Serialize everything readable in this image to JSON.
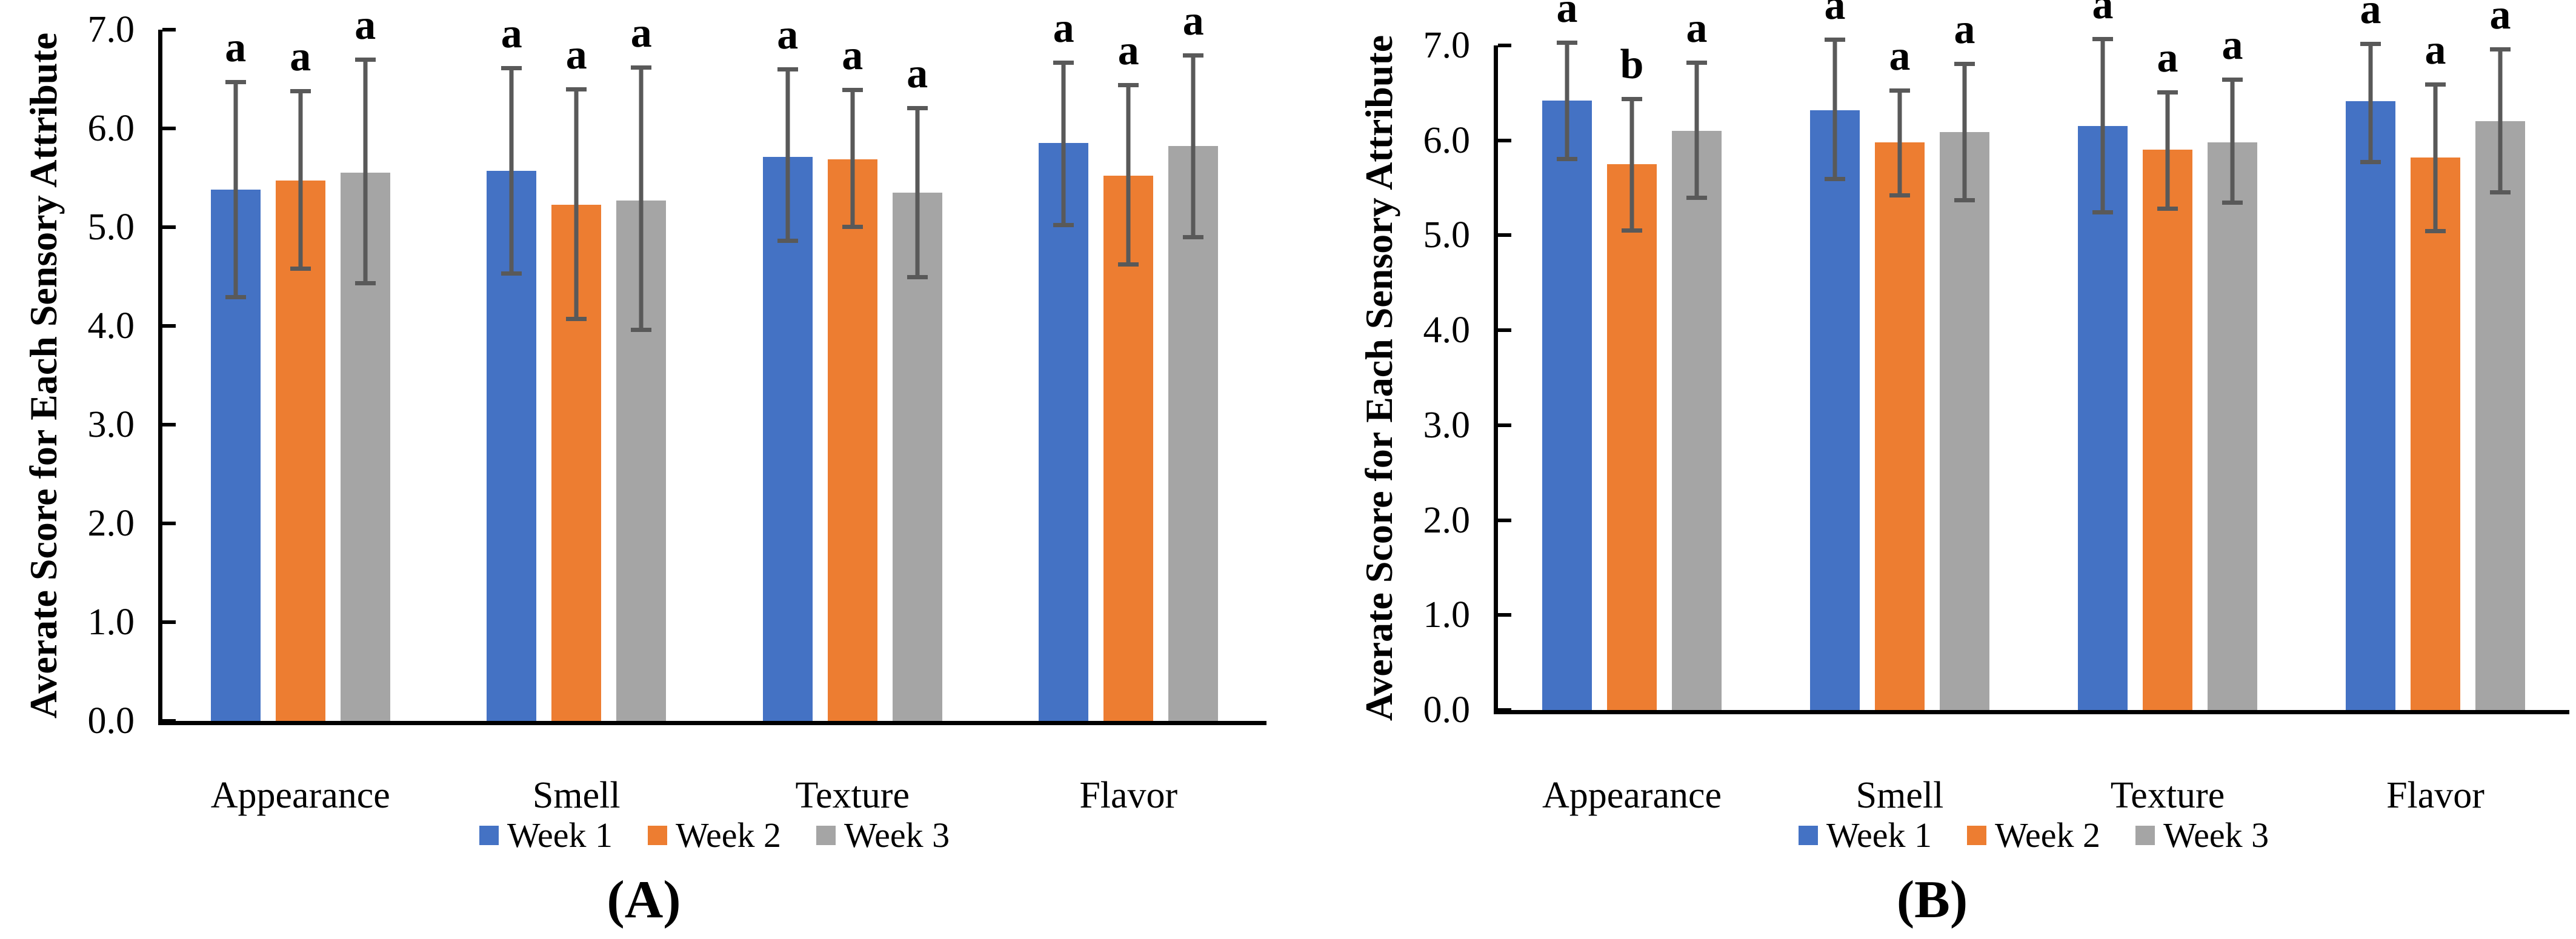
{
  "figure": {
    "y_axis_title": "Averate Score for Each Sensory Attribute",
    "y_tick_labels": [
      "0.0",
      "1.0",
      "2.0",
      "3.0",
      "4.0",
      "5.0",
      "6.0",
      "7.0"
    ],
    "colors": {
      "week1_blue": "#4472C4",
      "week2_orange": "#ED7D31",
      "week3_gray": "#A5A5A5",
      "error_bar_gray": "#595959",
      "axis_black": "#000000"
    },
    "legend": [
      {
        "label": "Week 1",
        "color": "#4472C4"
      },
      {
        "label": "Week 2",
        "color": "#ED7D31"
      },
      {
        "label": "Week 3",
        "color": "#A5A5A5"
      }
    ]
  },
  "chart_data": [
    {
      "type": "bar",
      "panel_caption": "(A)",
      "ylabel": "Averate Score for Each Sensory Attribute",
      "xlabel": "",
      "ylim": [
        0.0,
        7.0
      ],
      "ytick_step": 1.0,
      "grid": false,
      "legend_position": "bottom",
      "categories": [
        "Appearance",
        "Smell",
        "Texture",
        "Flavor"
      ],
      "series": [
        {
          "name": "Week 1",
          "color": "#4472C4",
          "values": [
            5.38,
            5.57,
            5.71,
            5.85
          ],
          "err_low": [
            4.27,
            4.51,
            4.84,
            5.0
          ],
          "err_high": [
            6.49,
            6.63,
            6.62,
            6.69
          ],
          "sig_labels": [
            "a",
            "a",
            "a",
            "a"
          ]
        },
        {
          "name": "Week 2",
          "color": "#ED7D31",
          "values": [
            5.47,
            5.23,
            5.69,
            5.52
          ],
          "err_low": [
            4.56,
            4.05,
            4.98,
            4.6
          ],
          "err_high": [
            6.4,
            6.42,
            6.41,
            6.46
          ],
          "sig_labels": [
            "a",
            "a",
            "a",
            "a"
          ]
        },
        {
          "name": "Week 3",
          "color": "#A5A5A5",
          "values": [
            5.55,
            5.27,
            5.35,
            5.82
          ],
          "err_low": [
            4.41,
            3.94,
            4.47,
            4.88
          ],
          "err_high": [
            6.72,
            6.64,
            6.23,
            6.76
          ],
          "sig_labels": [
            "a",
            "a",
            "a",
            "a"
          ]
        }
      ]
    },
    {
      "type": "bar",
      "panel_caption": "(B)",
      "ylabel": "Averate Score for Each Sensory Attribute",
      "xlabel": "",
      "ylim": [
        0.0,
        7.0
      ],
      "ytick_step": 1.0,
      "grid": false,
      "legend_position": "bottom",
      "categories": [
        "Appearance",
        "Smell",
        "Texture",
        "Flavor"
      ],
      "series": [
        {
          "name": "Week 1",
          "color": "#4472C4",
          "values": [
            6.42,
            6.32,
            6.15,
            6.41
          ],
          "err_low": [
            5.78,
            5.57,
            5.22,
            5.75
          ],
          "err_high": [
            7.05,
            7.08,
            7.09,
            7.04
          ],
          "sig_labels": [
            "a",
            "a",
            "a",
            "a"
          ]
        },
        {
          "name": "Week 2",
          "color": "#ED7D31",
          "values": [
            5.75,
            5.98,
            5.9,
            5.82
          ],
          "err_low": [
            5.03,
            5.4,
            5.26,
            5.02
          ],
          "err_high": [
            6.46,
            6.55,
            6.53,
            6.61
          ],
          "sig_labels": [
            "b",
            "a",
            "a",
            "a"
          ]
        },
        {
          "name": "Week 3",
          "color": "#A5A5A5",
          "values": [
            6.1,
            6.09,
            5.98,
            6.2
          ],
          "err_low": [
            5.37,
            5.35,
            5.32,
            5.43
          ],
          "err_high": [
            6.84,
            6.83,
            6.66,
            6.98
          ],
          "sig_labels": [
            "a",
            "a",
            "a",
            "a"
          ]
        }
      ]
    }
  ]
}
